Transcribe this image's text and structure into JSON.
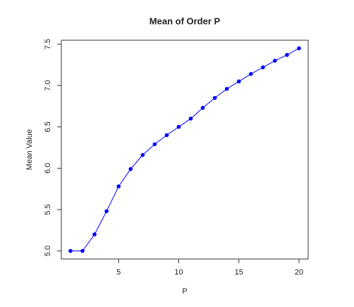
{
  "chart_data": {
    "type": "line",
    "title": "Mean of Order P",
    "x_label": "P",
    "y_label": "Mean Value",
    "x": [
      1,
      2,
      3,
      4,
      5,
      6,
      7,
      8,
      9,
      10,
      11,
      12,
      13,
      14,
      15,
      16,
      17,
      18,
      19,
      20
    ],
    "series": [
      {
        "color": "#0000ff",
        "values": [
          5.0,
          5.0,
          5.2,
          5.48,
          5.78,
          5.99,
          6.16,
          6.29,
          6.4,
          6.5,
          6.6,
          6.73,
          6.85,
          6.96,
          7.05,
          7.14,
          7.22,
          7.3,
          7.37,
          7.45
        ]
      }
    ],
    "xlim": [
      0.24,
      20.76
    ],
    "ylim": [
      4.902,
      7.548
    ],
    "xticks": [
      5,
      10,
      15,
      20
    ],
    "yticks": [
      {
        "value": 5,
        "label": "5.0"
      },
      5.5,
      {
        "value": 6,
        "label": "6.0"
      },
      6.5,
      {
        "value": 7,
        "label": "7.0"
      },
      7.5
    ]
  }
}
